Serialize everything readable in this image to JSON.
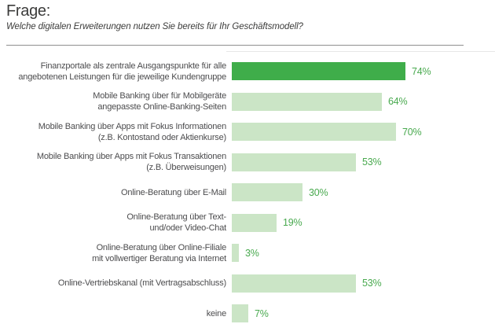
{
  "header": {
    "title": "Frage:",
    "subtitle": "Welche digitalen Erweiterungen nutzen Sie bereits für Ihr Geschäftsmodell?"
  },
  "chart_data": {
    "type": "bar",
    "orientation": "horizontal",
    "title": "Frage:",
    "subtitle": "Welche digitalen Erweiterungen nutzen Sie bereits für Ihr Geschäftsmodell?",
    "categories": [
      "Finanzportale als zentrale Ausgangspunkte für alle\nangebotenen Leistungen für die jeweilige Kundengruppe",
      "Mobile Banking über für Mobilgeräte\nangepasste Online-Banking-Seiten",
      "Mobile Banking über Apps mit Fokus Informationen\n(z.B. Kontostand oder Aktienkurse)",
      "Mobile Banking über Apps mit Fokus Transaktionen\n(z.B. Überweisungen)",
      "Online-Beratung über E-Mail",
      "Online-Beratung über Text-\nund/oder Video-Chat",
      "Online-Beratung über Online-Filiale\nmit vollwertiger Beratung via Internet",
      "Online-Vertriebskanal (mit Vertragsabschluss)",
      "keine"
    ],
    "values": [
      74,
      64,
      70,
      53,
      30,
      19,
      3,
      53,
      7
    ],
    "value_labels": [
      "74%",
      "64%",
      "70%",
      "53%",
      "30%",
      "19%",
      "3%",
      "53%",
      "7%"
    ],
    "value_suffix": "%",
    "xlim": [
      0,
      100
    ],
    "grid": false,
    "legend": false,
    "highlight_index": 0,
    "colors": {
      "highlight_bar": "#3fad4a",
      "bar": "#cbe5c6",
      "value_label": "#48a94e"
    }
  }
}
